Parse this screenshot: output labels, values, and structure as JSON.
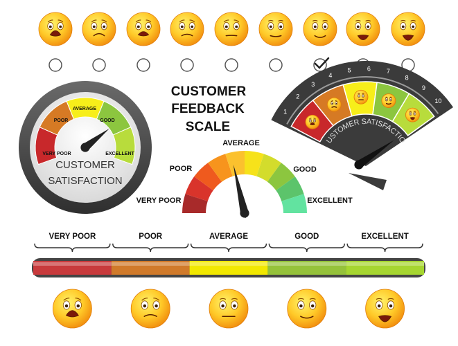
{
  "title": [
    "CUSTOMER",
    "FEEDBACK",
    "SCALE"
  ],
  "left_gauge": {
    "labels": [
      "VERY POOR",
      "POOR",
      "AVERAGE",
      "GOOD",
      "EXCELLENT"
    ],
    "caption": [
      "CUSTOMER",
      "SATISFACTION"
    ]
  },
  "center_gauge": {
    "labels": [
      "VERY POOR",
      "POOR",
      "AVERAGE",
      "GOOD",
      "EXCELLENT"
    ]
  },
  "fan_gauge": {
    "numbers": [
      1,
      2,
      3,
      4,
      5,
      6,
      7,
      8,
      9,
      10
    ],
    "caption": "CUSTOMER SATISFACTION"
  },
  "scale_bar": {
    "labels": [
      "VERY POOR",
      "POOR",
      "AVERAGE",
      "GOOD",
      "EXCELLENT"
    ]
  }
}
